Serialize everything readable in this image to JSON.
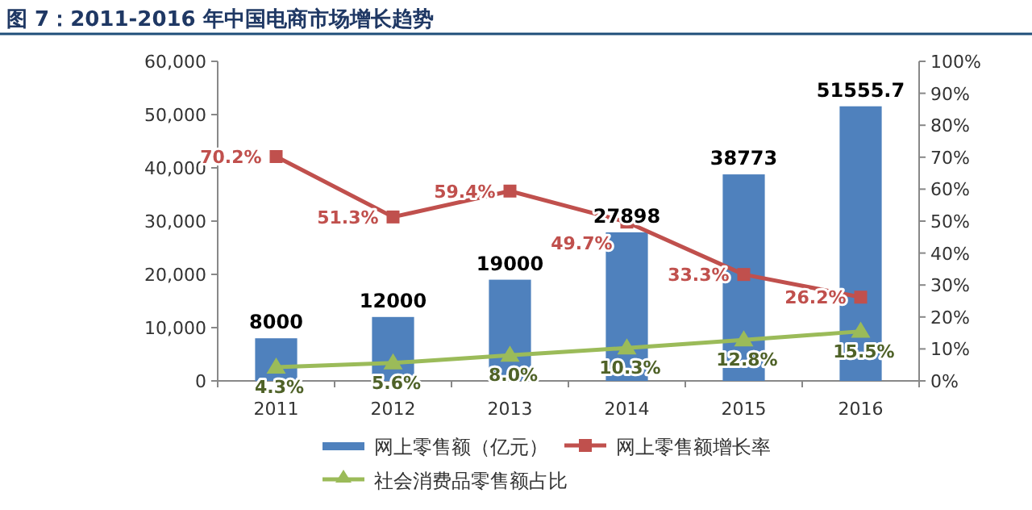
{
  "chart_data": {
    "type": "bar",
    "title": "图 7：2011-2016 年中国电商市场增长趋势",
    "categories": [
      "2011",
      "2012",
      "2013",
      "2014",
      "2015",
      "2016"
    ],
    "series": [
      {
        "name": "网上零售额（亿元）",
        "color": "#4f81bd",
        "values": [
          8000,
          12000,
          19000,
          27898,
          38773,
          51555.7
        ],
        "value_labels": [
          "8000",
          "12000",
          "19000",
          "27898",
          "38773",
          "51555.7"
        ]
      },
      {
        "name": "网上零售额增长率",
        "type": "line",
        "axis": "y2",
        "marker": "square",
        "color": "#c0504d",
        "values": [
          70.2,
          51.3,
          59.4,
          49.7,
          33.3,
          26.2
        ],
        "value_labels": [
          "70.2%",
          "51.3%",
          "59.4%",
          "49.7%",
          "33.3%",
          "26.2%"
        ]
      },
      {
        "name": "社会消费品零售额占比",
        "type": "line",
        "axis": "y2",
        "marker": "triangle",
        "color": "#9bbb59",
        "values": [
          4.3,
          5.6,
          8.0,
          10.3,
          12.8,
          15.5
        ],
        "value_labels": [
          "4.3%",
          "5.6%",
          "8.0%",
          "10.3%",
          "12.8%",
          "15.5%"
        ]
      }
    ],
    "ylim": [
      0,
      60000
    ],
    "yticks": [
      {
        "value": 0,
        "label": "0"
      },
      {
        "value": 10000,
        "label": "10,000"
      },
      {
        "value": 20000,
        "label": "20,000"
      },
      {
        "value": 30000,
        "label": "30,000"
      },
      {
        "value": 40000,
        "label": "40,000"
      },
      {
        "value": 50000,
        "label": "50,000"
      },
      {
        "value": 60000,
        "label": "60,000"
      }
    ],
    "y2lim": [
      0,
      100
    ],
    "y2ticks": [
      {
        "value": 0,
        "label": "0%"
      },
      {
        "value": 10,
        "label": "10%"
      },
      {
        "value": 20,
        "label": "20%"
      },
      {
        "value": 30,
        "label": "30%"
      },
      {
        "value": 40,
        "label": "40%"
      },
      {
        "value": 50,
        "label": "50%"
      },
      {
        "value": 60,
        "label": "60%"
      },
      {
        "value": 70,
        "label": "70%"
      },
      {
        "value": 80,
        "label": "80%"
      },
      {
        "value": 90,
        "label": "90%"
      },
      {
        "value": 100,
        "label": "100%"
      }
    ],
    "legend": "bottom"
  }
}
